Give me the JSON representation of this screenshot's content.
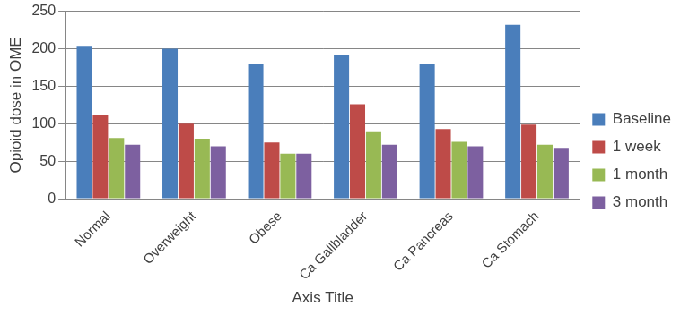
{
  "chart_data": {
    "type": "bar",
    "x_label": "Axis Title",
    "y_label": "Opioid dose in OME",
    "categories": [
      "Normal",
      "Overweight",
      "Obese",
      "Ca Gallbladder",
      "Ca Pancreas",
      "Ca Stomach"
    ],
    "series": [
      {
        "name": "Baseline",
        "color": "#4a7ebb",
        "values": [
          204,
          200,
          180,
          192,
          180,
          232
        ]
      },
      {
        "name": "1 week",
        "color": "#be4b48",
        "values": [
          111,
          100,
          75,
          126,
          93,
          99
        ]
      },
      {
        "name": "1 month",
        "color": "#98b954",
        "values": [
          81,
          80,
          60,
          90,
          76,
          72
        ]
      },
      {
        "name": "3 month",
        "color": "#7d60a0",
        "values": [
          72,
          70,
          60,
          72,
          70,
          68
        ]
      }
    ],
    "ylim": [
      0,
      250
    ],
    "yticks": [
      0,
      50,
      100,
      150,
      200,
      250
    ],
    "grid": true,
    "legend": "right"
  }
}
